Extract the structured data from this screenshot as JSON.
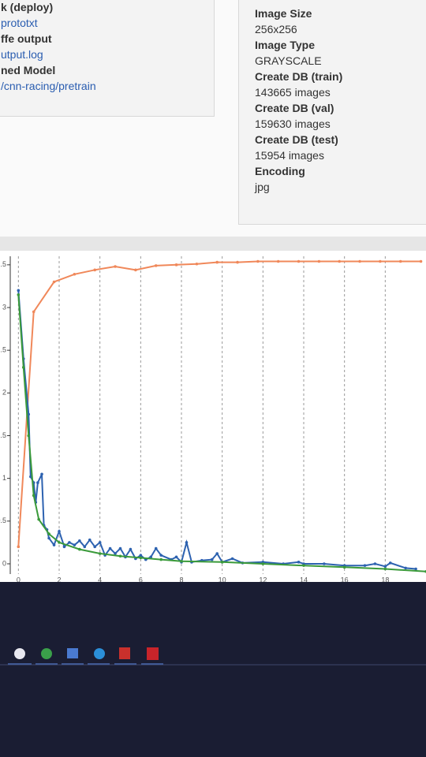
{
  "files_panel": {
    "rows": [
      "k (deploy)",
      "prototxt",
      "ffe output",
      "utput.log",
      "ned Model",
      "/cnn-racing/pretrain"
    ]
  },
  "dataset_panel": {
    "rows": [
      {
        "label": "Image Size",
        "value": "256x256"
      },
      {
        "label": "Image Type",
        "value": "GRAYSCALE"
      },
      {
        "label": "Create DB (train)",
        "value": "143665 images"
      },
      {
        "label": "Create DB (val)",
        "value": "159630 images"
      },
      {
        "label": "Create DB (test)",
        "value": "15954 images"
      },
      {
        "label": "Encoding",
        "value": "jpg"
      }
    ]
  },
  "chart_data": {
    "type": "line",
    "xlim": [
      -0.4,
      20
    ],
    "ylim": [
      -0.12,
      3.6
    ],
    "xticks": [
      0,
      2,
      4,
      6,
      8,
      10,
      12,
      14,
      16,
      18
    ],
    "yticks": [
      0,
      0.5,
      1,
      1.5,
      2,
      2.5,
      3,
      {
        "value": 3.5,
        "label": ".5"
      }
    ],
    "grid": true,
    "series": [
      {
        "color": "#f0885a",
        "x": [
          0,
          0.75,
          1.75,
          2.75,
          3.75,
          4.75,
          5.75,
          6.75,
          7.75,
          8.75,
          9.75,
          10.75,
          11.75,
          12.75,
          13.75,
          14.75,
          15.75,
          16.75,
          17.75,
          18.75,
          19.75
        ],
        "values": [
          0.2,
          2.95,
          3.3,
          3.39,
          3.44,
          3.48,
          3.44,
          3.49,
          3.5,
          3.51,
          3.53,
          3.53,
          3.54,
          3.54,
          3.54,
          3.54,
          3.54,
          3.54,
          3.54,
          3.54,
          3.54
        ]
      },
      {
        "color": "#2d62b0",
        "x": [
          0,
          0.25,
          0.5,
          0.6,
          0.75,
          0.85,
          0.95,
          1.15,
          1.25,
          1.4,
          1.5,
          1.75,
          2,
          2.25,
          2.5,
          2.75,
          3,
          3.25,
          3.5,
          3.75,
          4,
          4.25,
          4.5,
          4.75,
          5,
          5.25,
          5.5,
          5.75,
          6,
          6.25,
          6.5,
          6.75,
          7,
          7.5,
          7.75,
          8,
          8.25,
          8.5,
          9,
          9.5,
          9.75,
          10,
          10.5,
          11,
          12,
          13,
          13.75,
          14,
          15,
          16,
          17,
          17.5,
          18,
          18.25,
          19,
          19.5
        ],
        "values": [
          3.2,
          2.4,
          1.75,
          1.02,
          0.95,
          0.72,
          0.95,
          1.05,
          0.45,
          0.4,
          0.3,
          0.22,
          0.38,
          0.2,
          0.25,
          0.22,
          0.27,
          0.2,
          0.28,
          0.2,
          0.25,
          0.1,
          0.18,
          0.12,
          0.18,
          0.08,
          0.17,
          0.06,
          0.1,
          0.05,
          0.08,
          0.18,
          0.1,
          0.05,
          0.08,
          0.02,
          0.25,
          0.02,
          0.04,
          0.05,
          0.12,
          0.02,
          0.06,
          0.01,
          0.02,
          0.0,
          0.02,
          0.0,
          0.0,
          -0.02,
          -0.02,
          0.0,
          -0.03,
          0.01,
          -0.05,
          -0.06
        ]
      },
      {
        "color": "#3a9a3a",
        "x": [
          0,
          0.25,
          0.5,
          0.75,
          1,
          1.5,
          2,
          3,
          4,
          5,
          6,
          7,
          8,
          10,
          12,
          14,
          16,
          18,
          20
        ],
        "values": [
          3.15,
          2.3,
          1.5,
          0.8,
          0.52,
          0.35,
          0.25,
          0.17,
          0.12,
          0.09,
          0.07,
          0.05,
          0.03,
          0.02,
          0.0,
          -0.02,
          -0.04,
          -0.06,
          -0.09
        ]
      }
    ]
  }
}
